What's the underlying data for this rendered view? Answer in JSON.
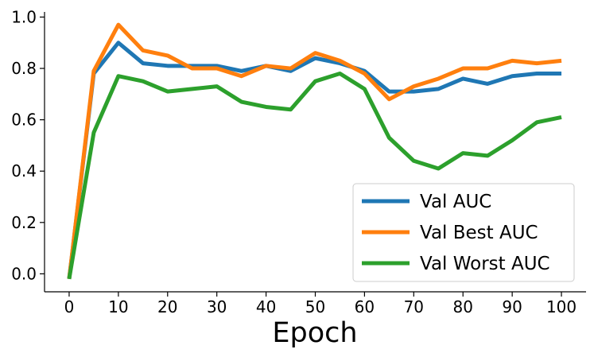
{
  "chart_data": {
    "type": "line",
    "title": "",
    "xlabel": "Epoch",
    "ylabel": "",
    "xlim": [
      -5,
      105
    ],
    "ylim": [
      -0.07,
      1.02
    ],
    "xticks": [
      0,
      10,
      20,
      30,
      40,
      50,
      60,
      70,
      80,
      90,
      100
    ],
    "xtick_labels": [
      "0",
      "10",
      "20",
      "30",
      "40",
      "50",
      "60",
      "70",
      "80",
      "90",
      "100"
    ],
    "yticks": [
      0.0,
      0.2,
      0.4,
      0.6,
      0.8,
      1.0
    ],
    "ytick_labels": [
      "0.0",
      "0.2",
      "0.4",
      "0.6",
      "0.8",
      "1.0"
    ],
    "grid": false,
    "legend_position": "lower-right",
    "x": [
      0,
      5,
      10,
      15,
      20,
      25,
      30,
      35,
      40,
      45,
      50,
      55,
      60,
      65,
      70,
      75,
      80,
      85,
      90,
      95,
      100
    ],
    "series": [
      {
        "name": "Val AUC",
        "color": "#1f77b4",
        "values": [
          -0.02,
          0.78,
          0.9,
          0.82,
          0.81,
          0.81,
          0.81,
          0.79,
          0.81,
          0.79,
          0.84,
          0.82,
          0.79,
          0.71,
          0.71,
          0.72,
          0.76,
          0.74,
          0.77,
          0.78,
          0.78
        ]
      },
      {
        "name": "Val Best AUC",
        "color": "#ff7f0e",
        "values": [
          -0.02,
          0.79,
          0.97,
          0.87,
          0.85,
          0.8,
          0.8,
          0.77,
          0.81,
          0.8,
          0.86,
          0.83,
          0.78,
          0.68,
          0.73,
          0.76,
          0.8,
          0.8,
          0.83,
          0.82,
          0.83
        ]
      },
      {
        "name": "Val Worst AUC",
        "color": "#2ca02c",
        "values": [
          -0.02,
          0.55,
          0.77,
          0.75,
          0.71,
          0.72,
          0.73,
          0.67,
          0.65,
          0.64,
          0.75,
          0.78,
          0.72,
          0.53,
          0.44,
          0.41,
          0.47,
          0.46,
          0.52,
          0.59,
          0.61
        ]
      }
    ]
  }
}
